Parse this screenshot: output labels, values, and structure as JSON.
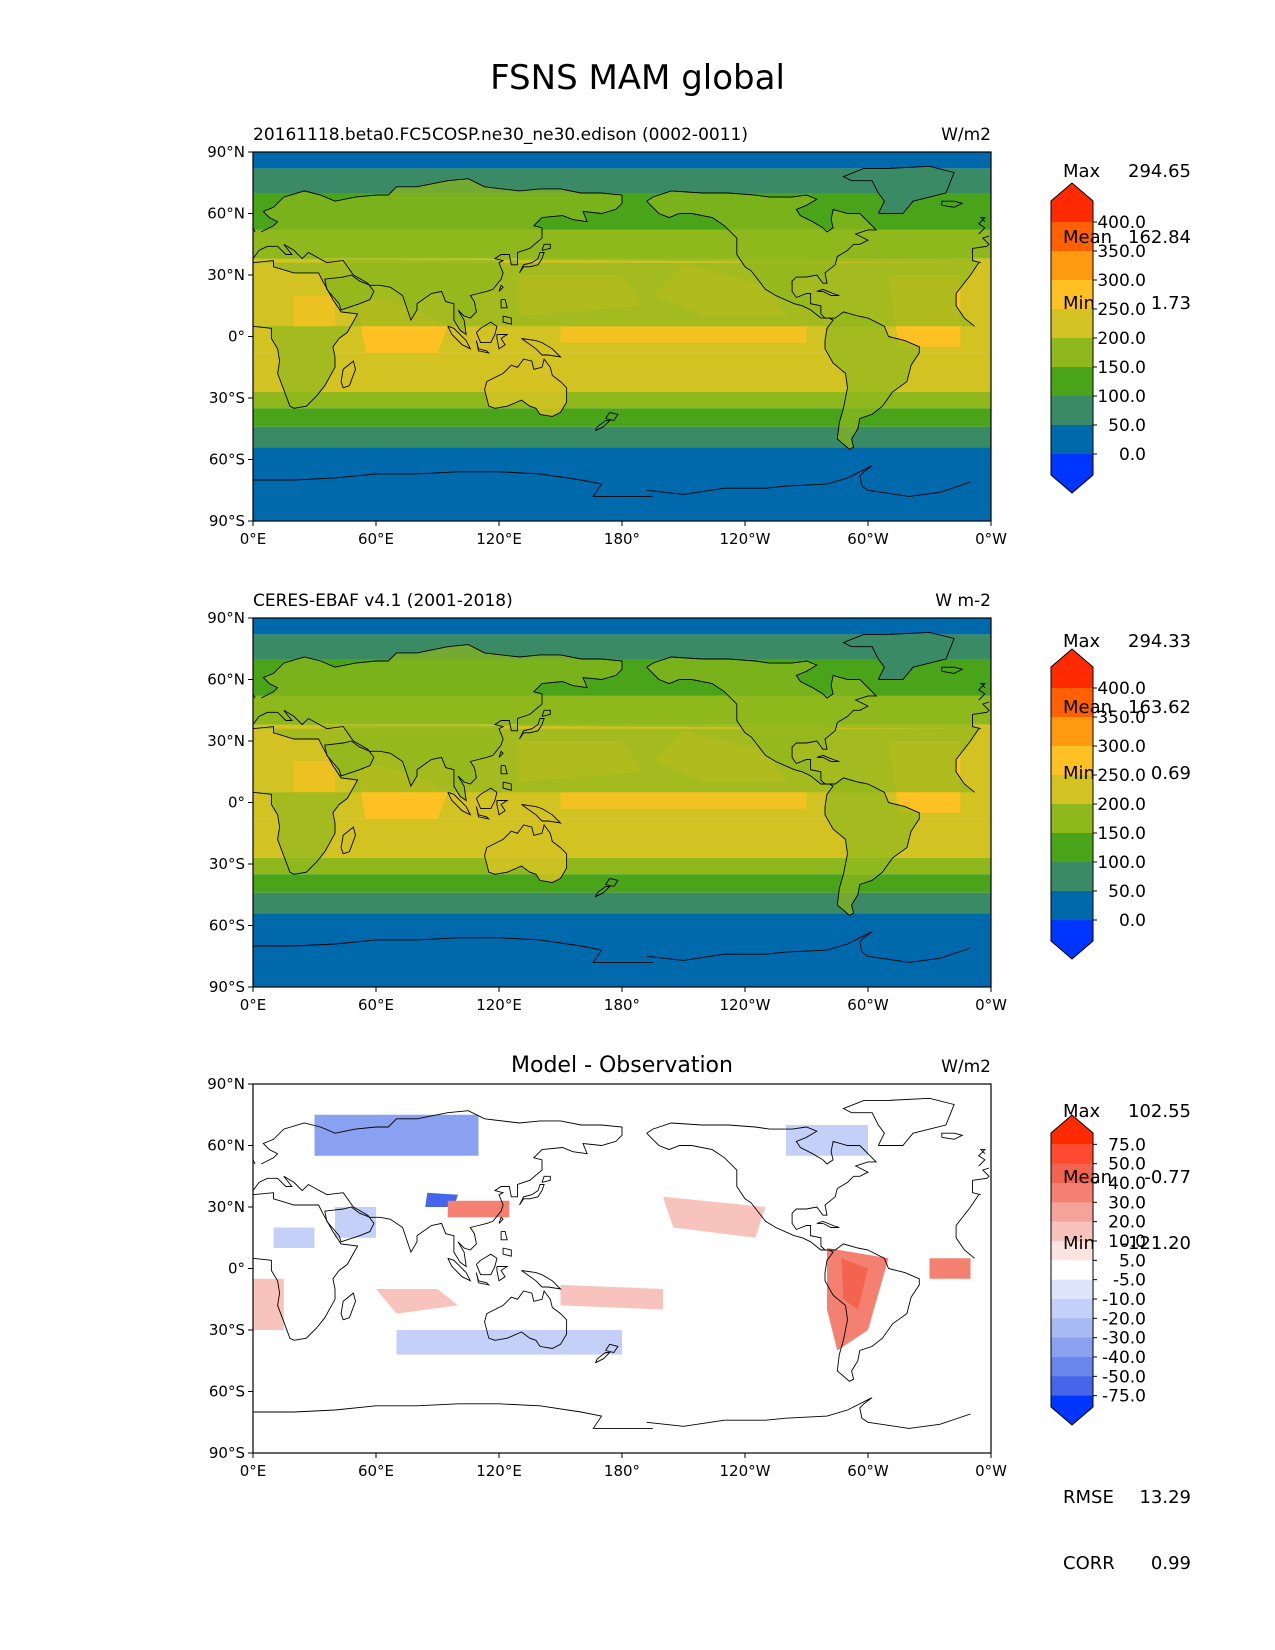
{
  "figure_title": "FSNS MAM global",
  "chart_data": [
    {
      "type": "heatmap",
      "panel": "model",
      "title_left": "20161118.beta0.FC5COSP.ne30_ne30.edison (0002-0011)",
      "title_right": "W/m2",
      "stats": {
        "max_label": "Max",
        "max": "294.65",
        "mean_label": "Mean",
        "mean": "162.84",
        "min_label": "Min",
        "min": "1.73"
      },
      "xticks": [
        "0°E",
        "60°E",
        "120°E",
        "180°",
        "120°W",
        "60°W",
        "0°W"
      ],
      "yticks": [
        "90°N",
        "60°N",
        "30°N",
        "0°",
        "30°S",
        "60°S",
        "90°S"
      ],
      "xlim": [
        0,
        360
      ],
      "ylim": [
        -90,
        90
      ],
      "colorbar_levels": [
        "400.0",
        "350.0",
        "300.0",
        "250.0",
        "200.0",
        "150.0",
        "100.0",
        "50.0",
        "0.0"
      ],
      "colorbar_colors": [
        "#ff2a00",
        "#ff6100",
        "#ff9a10",
        "#fdc124",
        "#d3c322",
        "#8fb81c",
        "#4aa419",
        "#3a8a66",
        "#0069ab",
        "#0034ff"
      ]
    },
    {
      "type": "heatmap",
      "panel": "observation",
      "title_left": "CERES-EBAF v4.1 (2001-2018)",
      "title_right": "W m-2",
      "stats": {
        "max_label": "Max",
        "max": "294.33",
        "mean_label": "Mean",
        "mean": "163.62",
        "min_label": "Min",
        "min": "0.69"
      },
      "xticks": [
        "0°E",
        "60°E",
        "120°E",
        "180°",
        "120°W",
        "60°W",
        "0°W"
      ],
      "yticks": [
        "90°N",
        "60°N",
        "30°N",
        "0°",
        "30°S",
        "60°S",
        "90°S"
      ],
      "xlim": [
        0,
        360
      ],
      "ylim": [
        -90,
        90
      ],
      "colorbar_levels": [
        "400.0",
        "350.0",
        "300.0",
        "250.0",
        "200.0",
        "150.0",
        "100.0",
        "50.0",
        "0.0"
      ],
      "colorbar_colors": [
        "#ff2a00",
        "#ff6100",
        "#ff9a10",
        "#fdc124",
        "#d3c322",
        "#8fb81c",
        "#4aa419",
        "#3a8a66",
        "#0069ab",
        "#0034ff"
      ]
    },
    {
      "type": "heatmap",
      "panel": "difference",
      "title_center": "Model - Observation",
      "title_right": "W/m2",
      "stats": {
        "max_label": "Max",
        "max": "102.55",
        "mean_label": "Mean",
        "mean": "-0.77",
        "min_label": "Min",
        "min": "-121.20"
      },
      "metrics": {
        "rmse_label": "RMSE",
        "rmse": "13.29",
        "corr_label": "CORR",
        "corr": "0.99"
      },
      "xticks": [
        "0°E",
        "60°E",
        "120°E",
        "180°",
        "120°W",
        "60°W",
        "0°W"
      ],
      "yticks": [
        "90°N",
        "60°N",
        "30°N",
        "0°",
        "30°S",
        "60°S",
        "90°S"
      ],
      "xlim": [
        0,
        360
      ],
      "ylim": [
        -90,
        90
      ],
      "colorbar_levels": [
        "75.0",
        "50.0",
        "40.0",
        "30.0",
        "20.0",
        "10.0",
        "5.0",
        "-5.0",
        "-10.0",
        "-20.0",
        "-30.0",
        "-40.0",
        "-50.0",
        "-75.0"
      ],
      "colorbar_colors": [
        "#ff2a00",
        "#ff4a30",
        "#f26450",
        "#f38070",
        "#f5a298",
        "#f7c3bc",
        "#fbe3df",
        "#ffffff",
        "#dde4fb",
        "#c4d0f8",
        "#a8b9f4",
        "#8aa0f1",
        "#6a85ec",
        "#4566ea",
        "#0034ff"
      ]
    }
  ]
}
